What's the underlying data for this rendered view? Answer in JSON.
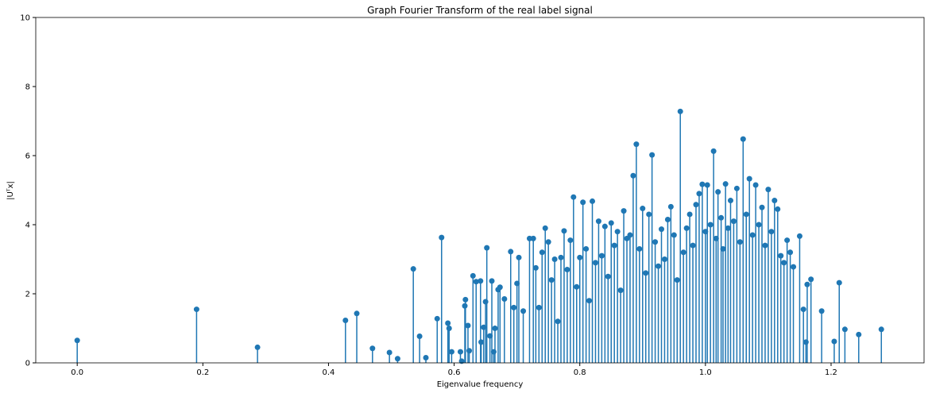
{
  "chart_data": {
    "type": "stem",
    "title": "Graph Fourier Transform of the real label signal",
    "xlabel": "Eigenvalue frequency",
    "ylabel": "|Uᵀx|",
    "color": "#1f77b4",
    "xlim": [
      -0.066,
      1.348
    ],
    "ylim": [
      0,
      10
    ],
    "xticks": [
      {
        "value": 0,
        "label": "0.0"
      },
      0.2,
      0.4,
      0.6,
      0.8,
      {
        "value": 1,
        "label": "1.0"
      },
      1.2
    ],
    "yticks": [
      0,
      2,
      4,
      6,
      8,
      10
    ],
    "x": [
      0,
      0.19,
      0.287,
      0.427,
      0.445,
      0.47,
      0.497,
      0.51,
      0.535,
      0.545,
      0.555,
      0.573,
      0.58,
      0.59,
      0.592,
      0.596,
      0.61,
      0.612,
      0.617,
      0.618,
      0.622,
      0.624,
      0.63,
      0.635,
      0.642,
      0.643,
      0.647,
      0.65,
      0.652,
      0.657,
      0.66,
      0.663,
      0.665,
      0.67,
      0.673,
      0.68,
      0.69,
      0.695,
      0.7,
      0.703,
      0.71,
      0.72,
      0.726,
      0.73,
      0.74,
      0.745,
      0.75,
      0.76,
      0.77,
      0.775,
      0.785,
      0.79,
      0.8,
      0.805,
      0.82,
      0.83,
      0.84,
      0.85,
      0.86,
      0.87,
      0.88,
      0.885,
      0.89,
      0.9,
      0.91,
      0.915,
      0.93,
      0.94,
      0.945,
      0.96,
      0.975,
      0.985,
      0.99,
      0.995,
      1.003,
      1.013,
      1.02,
      1.032,
      1.04,
      1.05,
      1.06,
      1.07,
      1.08,
      1.09,
      1.1,
      1.11,
      1.115,
      1.12,
      1.13,
      1.14,
      1.15,
      1.156,
      1.16,
      1.162,
      1.168,
      1.185,
      1.205,
      1.213,
      1.222,
      1.244,
      1.28,
      0.735,
      0.755,
      0.765,
      0.78,
      0.795,
      0.81,
      0.815,
      0.825,
      0.835,
      0.845,
      0.855,
      0.865,
      0.875,
      0.895,
      0.905,
      0.92,
      0.925,
      0.935,
      0.95,
      0.955,
      0.965,
      0.97,
      0.98,
      1.0,
      1.008,
      1.017,
      1.025,
      1.028,
      1.036,
      1.045,
      1.055,
      1.065,
      1.075,
      1.085,
      1.095,
      1.105,
      1.125,
      1.135
    ],
    "values": [
      0.65,
      1.55,
      0.45,
      1.23,
      1.43,
      0.42,
      0.3,
      0.12,
      2.72,
      0.77,
      0.15,
      1.28,
      3.63,
      1.15,
      1.0,
      0.32,
      0.32,
      0.05,
      1.65,
      1.83,
      1.08,
      0.35,
      2.52,
      2.35,
      2.37,
      0.6,
      1.03,
      1.77,
      3.33,
      0.78,
      2.37,
      0.32,
      1.0,
      2.12,
      2.19,
      1.85,
      3.22,
      1.6,
      2.3,
      3.05,
      1.5,
      3.6,
      3.6,
      2.75,
      3.2,
      3.9,
      3.5,
      3.0,
      3.05,
      3.82,
      3.55,
      4.8,
      3.05,
      4.65,
      4.68,
      4.1,
      3.95,
      4.05,
      3.8,
      4.4,
      3.7,
      5.42,
      6.33,
      4.47,
      4.3,
      6.02,
      3.87,
      4.15,
      4.52,
      7.28,
      4.3,
      4.58,
      4.9,
      5.17,
      5.15,
      6.13,
      4.95,
      5.18,
      4.7,
      5.05,
      6.48,
      5.33,
      5.15,
      4.5,
      5.02,
      4.7,
      4.45,
      3.1,
      3.55,
      2.78,
      3.67,
      1.55,
      0.6,
      2.27,
      2.42,
      1.5,
      0.62,
      2.32,
      0.97,
      0.82,
      0.97,
      1.6,
      2.4,
      1.2,
      2.7,
      2.2,
      3.3,
      1.8,
      2.9,
      3.1,
      2.5,
      3.4,
      2.1,
      3.6,
      3.3,
      2.6,
      3.5,
      2.8,
      3.0,
      3.7,
      2.4,
      3.2,
      3.9,
      3.4,
      3.8,
      4.0,
      3.6,
      4.2,
      3.3,
      3.9,
      4.1,
      3.5,
      4.3,
      3.7,
      4.0,
      3.4,
      3.8,
      2.9,
      3.2
    ]
  }
}
